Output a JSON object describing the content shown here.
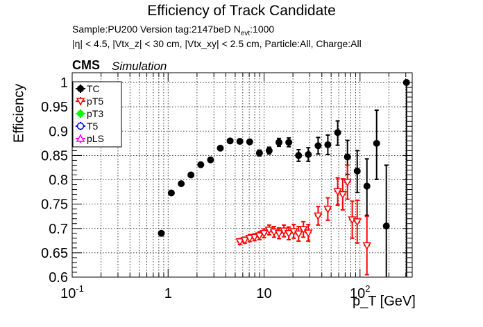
{
  "header": {
    "title": "Efficiency of Track Candidate",
    "subtitle_line1": "Sample:PU200   Version tag:2147beD  N",
    "subtitle_line1_sub": "evt",
    "subtitle_line1_end": ":1000",
    "subtitle_line2": "|η| < 4.5, |Vtx_z| < 30 cm, |Vtx_xy| < 2.5 cm, Particle:All, Charge:All",
    "cms_label": "CMS",
    "simulation_label": "Simulation"
  },
  "chart_data": {
    "type": "scatter",
    "title": "Efficiency of Track Candidate",
    "xlabel": "p_T [GeV]",
    "ylabel": "Efficiency",
    "xscale": "log",
    "xlim": [
      0.1,
      350
    ],
    "ylim": [
      0.6,
      1.02
    ],
    "grid": true,
    "legend_position": "top-left",
    "x_tick_labels": [
      "10^-1",
      "1",
      "10",
      "10^2"
    ],
    "y_tick_labels": [
      "0.6",
      "0.65",
      "0.7",
      "0.75",
      "0.8",
      "0.85",
      "0.9",
      "0.95",
      "1"
    ],
    "legend": [
      {
        "name": "TC",
        "color": "#000000",
        "marker": "circle-filled"
      },
      {
        "name": "pT5",
        "color": "#ff0000",
        "marker": "triangle-down-open"
      },
      {
        "name": "pT3",
        "color": "#00ff00",
        "marker": "circle-filled"
      },
      {
        "name": "T5",
        "color": "#0000ff",
        "marker": "circle-open"
      },
      {
        "name": "pLS",
        "color": "#ff00ff",
        "marker": "triangle-open"
      }
    ],
    "series": [
      {
        "name": "TC",
        "color": "#000000",
        "points": [
          {
            "x": 0.85,
            "xlo": 0.8,
            "xhi": 0.9,
            "y": 0.69,
            "ylo": 0.688,
            "yhi": 0.692
          },
          {
            "x": 1.08,
            "xlo": 1.0,
            "xhi": 1.17,
            "y": 0.773,
            "ylo": 0.771,
            "yhi": 0.775
          },
          {
            "x": 1.37,
            "xlo": 1.27,
            "xhi": 1.47,
            "y": 0.792,
            "ylo": 0.79,
            "yhi": 0.794
          },
          {
            "x": 1.73,
            "xlo": 1.6,
            "xhi": 1.86,
            "y": 0.81,
            "ylo": 0.808,
            "yhi": 0.812
          },
          {
            "x": 2.19,
            "xlo": 2.03,
            "xhi": 2.36,
            "y": 0.831,
            "ylo": 0.829,
            "yhi": 0.833
          },
          {
            "x": 2.77,
            "xlo": 2.57,
            "xhi": 2.98,
            "y": 0.841,
            "ylo": 0.838,
            "yhi": 0.844
          },
          {
            "x": 3.5,
            "xlo": 3.25,
            "xhi": 3.77,
            "y": 0.865,
            "ylo": 0.862,
            "yhi": 0.868
          },
          {
            "x": 4.43,
            "xlo": 4.11,
            "xhi": 4.77,
            "y": 0.88,
            "ylo": 0.877,
            "yhi": 0.883
          },
          {
            "x": 5.6,
            "xlo": 5.2,
            "xhi": 6.03,
            "y": 0.879,
            "ylo": 0.875,
            "yhi": 0.883
          },
          {
            "x": 7.08,
            "xlo": 6.57,
            "xhi": 7.62,
            "y": 0.878,
            "ylo": 0.874,
            "yhi": 0.882
          },
          {
            "x": 8.95,
            "xlo": 8.31,
            "xhi": 9.64,
            "y": 0.855,
            "ylo": 0.849,
            "yhi": 0.861
          },
          {
            "x": 11.3,
            "xlo": 10.5,
            "xhi": 12.2,
            "y": 0.86,
            "ylo": 0.853,
            "yhi": 0.867
          },
          {
            "x": 14.3,
            "xlo": 13.3,
            "xhi": 15.4,
            "y": 0.877,
            "ylo": 0.869,
            "yhi": 0.885
          },
          {
            "x": 18.1,
            "xlo": 16.8,
            "xhi": 19.5,
            "y": 0.877,
            "ylo": 0.868,
            "yhi": 0.886
          },
          {
            "x": 22.9,
            "xlo": 21.2,
            "xhi": 24.6,
            "y": 0.85,
            "ylo": 0.838,
            "yhi": 0.862
          },
          {
            "x": 28.9,
            "xlo": 26.8,
            "xhi": 31.1,
            "y": 0.852,
            "ylo": 0.838,
            "yhi": 0.866
          },
          {
            "x": 36.6,
            "xlo": 34.0,
            "xhi": 39.4,
            "y": 0.87,
            "ylo": 0.853,
            "yhi": 0.887
          },
          {
            "x": 46.2,
            "xlo": 42.9,
            "xhi": 49.8,
            "y": 0.872,
            "ylo": 0.852,
            "yhi": 0.892
          },
          {
            "x": 58.5,
            "xlo": 54.3,
            "xhi": 63.0,
            "y": 0.897,
            "ylo": 0.871,
            "yhi": 0.921
          },
          {
            "x": 74.0,
            "xlo": 68.7,
            "xhi": 79.7,
            "y": 0.847,
            "ylo": 0.811,
            "yhi": 0.881
          },
          {
            "x": 93.5,
            "xlo": 86.8,
            "xhi": 100.7,
            "y": 0.818,
            "ylo": 0.774,
            "yhi": 0.86
          },
          {
            "x": 118.0,
            "xlo": 110.0,
            "xhi": 127.0,
            "y": 0.787,
            "ylo": 0.727,
            "yhi": 0.843
          },
          {
            "x": 149.0,
            "xlo": 138.0,
            "xhi": 160.0,
            "y": 0.875,
            "ylo": 0.801,
            "yhi": 0.943
          },
          {
            "x": 188.0,
            "xlo": 175.0,
            "xhi": 202.0,
            "y": 0.705,
            "ylo": 0.56,
            "yhi": 0.83
          },
          {
            "x": 305.0,
            "xlo": 283.0,
            "xhi": 328.0,
            "y": 1.0,
            "ylo": 0.57,
            "yhi": 1.0
          }
        ]
      },
      {
        "name": "pT5",
        "color": "#ff0000",
        "points": [
          {
            "x": 5.6,
            "xlo": 5.2,
            "xhi": 6.03,
            "y": 0.673,
            "ylo": 0.667,
            "yhi": 0.679
          },
          {
            "x": 6.3,
            "xlo": 5.9,
            "xhi": 6.7,
            "y": 0.676,
            "ylo": 0.67,
            "yhi": 0.682
          },
          {
            "x": 7.08,
            "xlo": 6.6,
            "xhi": 7.6,
            "y": 0.68,
            "ylo": 0.673,
            "yhi": 0.687
          },
          {
            "x": 7.95,
            "xlo": 7.4,
            "xhi": 8.5,
            "y": 0.682,
            "ylo": 0.675,
            "yhi": 0.689
          },
          {
            "x": 8.95,
            "xlo": 8.3,
            "xhi": 9.6,
            "y": 0.685,
            "ylo": 0.677,
            "yhi": 0.693
          },
          {
            "x": 10.0,
            "xlo": 9.3,
            "xhi": 10.8,
            "y": 0.69,
            "ylo": 0.681,
            "yhi": 0.699
          },
          {
            "x": 11.3,
            "xlo": 10.5,
            "xhi": 12.2,
            "y": 0.697,
            "ylo": 0.687,
            "yhi": 0.707
          },
          {
            "x": 12.7,
            "xlo": 11.8,
            "xhi": 13.7,
            "y": 0.693,
            "ylo": 0.682,
            "yhi": 0.704
          },
          {
            "x": 14.3,
            "xlo": 13.3,
            "xhi": 15.4,
            "y": 0.69,
            "ylo": 0.679,
            "yhi": 0.701
          },
          {
            "x": 16.1,
            "xlo": 15.0,
            "xhi": 17.3,
            "y": 0.695,
            "ylo": 0.683,
            "yhi": 0.707
          },
          {
            "x": 18.1,
            "xlo": 16.8,
            "xhi": 19.5,
            "y": 0.69,
            "ylo": 0.677,
            "yhi": 0.703
          },
          {
            "x": 20.4,
            "xlo": 19.0,
            "xhi": 22.0,
            "y": 0.694,
            "ylo": 0.68,
            "yhi": 0.708
          },
          {
            "x": 22.9,
            "xlo": 21.2,
            "xhi": 24.6,
            "y": 0.689,
            "ylo": 0.674,
            "yhi": 0.704
          },
          {
            "x": 25.7,
            "xlo": 23.9,
            "xhi": 27.7,
            "y": 0.698,
            "ylo": 0.682,
            "yhi": 0.714
          },
          {
            "x": 28.9,
            "xlo": 26.8,
            "xhi": 31.1,
            "y": 0.691,
            "ylo": 0.674,
            "yhi": 0.708
          },
          {
            "x": 36.6,
            "xlo": 34.0,
            "xhi": 39.4,
            "y": 0.726,
            "ylo": 0.707,
            "yhi": 0.745
          },
          {
            "x": 46.2,
            "xlo": 42.9,
            "xhi": 49.8,
            "y": 0.74,
            "ylo": 0.717,
            "yhi": 0.763
          },
          {
            "x": 58.5,
            "xlo": 54.3,
            "xhi": 63.0,
            "y": 0.776,
            "ylo": 0.748,
            "yhi": 0.804
          },
          {
            "x": 66.0,
            "xlo": 61.3,
            "xhi": 71.0,
            "y": 0.77,
            "ylo": 0.738,
            "yhi": 0.802
          },
          {
            "x": 74.0,
            "xlo": 68.7,
            "xhi": 79.7,
            "y": 0.795,
            "ylo": 0.76,
            "yhi": 0.83
          },
          {
            "x": 83.0,
            "xlo": 77.0,
            "xhi": 89.4,
            "y": 0.718,
            "ylo": 0.68,
            "yhi": 0.756
          },
          {
            "x": 93.5,
            "xlo": 86.8,
            "xhi": 100.7,
            "y": 0.714,
            "ylo": 0.67,
            "yhi": 0.758
          },
          {
            "x": 118.0,
            "xlo": 110.0,
            "xhi": 127.0,
            "y": 0.665,
            "ylo": 0.605,
            "yhi": 0.725
          }
        ]
      },
      {
        "name": "pT3",
        "color": "#00ff00",
        "points": []
      },
      {
        "name": "T5",
        "color": "#0000ff",
        "points": []
      },
      {
        "name": "pLS",
        "color": "#ff00ff",
        "points": []
      }
    ]
  }
}
